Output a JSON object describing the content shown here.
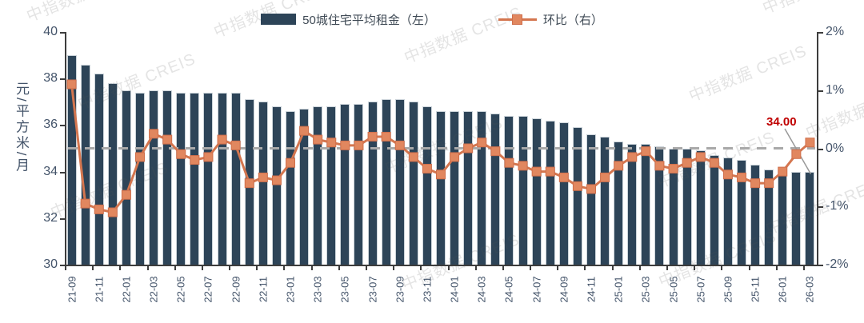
{
  "watermark": {
    "text": "中指数据 CREIS",
    "color": "rgba(90,90,90,0.16)"
  },
  "legend": {
    "bar_label": "50城住宅平均租金（左）",
    "line_label": "环比（右）"
  },
  "axes": {
    "left_title": "元/平方米/月",
    "left_ticks": [
      "40",
      "38",
      "36",
      "34",
      "32",
      "30"
    ],
    "right_ticks": [
      "2%",
      "1%",
      "0%",
      "-1%",
      "-2%"
    ]
  },
  "annotation": {
    "text": "34.00",
    "color": "#c00000"
  },
  "colors": {
    "bar": "#2d4458",
    "line": "#d4764f",
    "marker_fill": "#e1875f",
    "marker_border": "#cf6f4c",
    "zero_dash": "#a9a9a9",
    "axis_text": "#44546a"
  },
  "chart_data": {
    "type": "bar+line combo",
    "title": "",
    "categories": [
      "21-09",
      "21-10",
      "21-11",
      "21-12",
      "22-01",
      "22-02",
      "22-03",
      "22-04",
      "22-05",
      "22-06",
      "22-07",
      "22-08",
      "22-09",
      "22-10",
      "22-11",
      "22-12",
      "23-01",
      "23-02",
      "23-03",
      "23-04",
      "23-05",
      "23-06",
      "23-07",
      "23-08",
      "23-09",
      "23-10",
      "23-11",
      "23-12",
      "24-01",
      "24-02",
      "24-03",
      "24-04",
      "24-05",
      "24-06",
      "24-07",
      "24-08",
      "24-09",
      "24-10",
      "24-11",
      "24-12",
      "25-01",
      "25-02",
      "25-03",
      "25-04",
      "25-05",
      "25-06",
      "25-07",
      "25-08",
      "25-09",
      "25-10",
      "25-11",
      "25-12",
      "26-01",
      "26-02",
      "26-03"
    ],
    "x_label_every": 2,
    "series": [
      {
        "name": "50城住宅平均租金（左）",
        "type": "bar",
        "axis": "left",
        "unit": "元/平方米/月",
        "values": [
          39.0,
          38.6,
          38.2,
          37.8,
          37.5,
          37.4,
          37.5,
          37.5,
          37.4,
          37.4,
          37.4,
          37.4,
          37.4,
          37.1,
          37.0,
          36.8,
          36.6,
          36.7,
          36.8,
          36.8,
          36.9,
          36.9,
          37.0,
          37.1,
          37.1,
          37.0,
          36.8,
          36.6,
          36.6,
          36.6,
          36.6,
          36.5,
          36.4,
          36.4,
          36.3,
          36.2,
          36.1,
          35.9,
          35.6,
          35.5,
          35.3,
          35.2,
          35.2,
          35.1,
          35.0,
          35.0,
          34.9,
          34.7,
          34.6,
          34.5,
          34.3,
          34.1,
          33.9,
          34.0,
          34.0
        ]
      },
      {
        "name": "环比（右）",
        "type": "line",
        "axis": "right",
        "unit": "%",
        "values": [
          1.1,
          -0.95,
          -1.05,
          -1.1,
          -0.8,
          -0.15,
          0.25,
          0.15,
          -0.1,
          -0.2,
          -0.15,
          0.15,
          0.05,
          -0.6,
          -0.5,
          -0.55,
          -0.25,
          0.3,
          0.15,
          0.1,
          0.05,
          0.05,
          0.2,
          0.2,
          0.05,
          -0.15,
          -0.35,
          -0.45,
          -0.15,
          0.0,
          0.1,
          -0.05,
          -0.25,
          -0.3,
          -0.4,
          -0.4,
          -0.5,
          -0.65,
          -0.7,
          -0.5,
          -0.3,
          -0.15,
          -0.05,
          -0.3,
          -0.35,
          -0.25,
          -0.15,
          -0.25,
          -0.45,
          -0.5,
          -0.6,
          -0.6,
          -0.4,
          -0.1,
          0.1
        ]
      }
    ],
    "left_axis_range": [
      30,
      40
    ],
    "right_axis_range_pct": [
      -2,
      2
    ],
    "zero_reference_line": true,
    "last_value_label": "34.00",
    "legend_position": "top-center",
    "grid": "off"
  }
}
